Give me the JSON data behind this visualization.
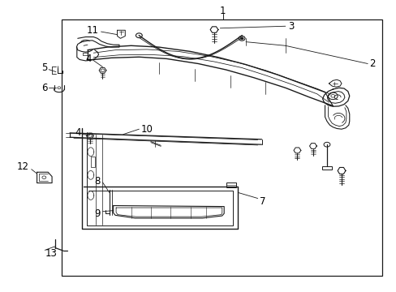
{
  "bg_color": "#ffffff",
  "line_color": "#1a1a1a",
  "text_color": "#000000",
  "fig_width": 4.89,
  "fig_height": 3.6,
  "dpi": 100,
  "border": [
    0.155,
    0.055,
    0.965,
    0.935
  ],
  "label_fontsize": 8.5
}
